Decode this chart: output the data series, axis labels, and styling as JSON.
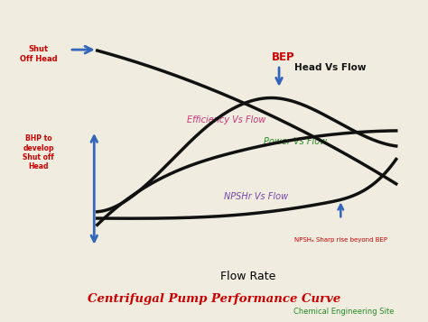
{
  "title": "Centrifugal Pump Performance Curve",
  "subtitle": "Chemical Engineering Site",
  "xlabel": "Flow Rate",
  "bg_color": "#f0ece0",
  "plot_bg": "#e8e4d8",
  "border_color": "#888888",
  "title_color": "#cc0000",
  "subtitle_color": "#228B22",
  "curve_color": "#111111",
  "label_head": "Head Vs Flow",
  "label_efficiency": "Efficiency Vs Flow",
  "label_power": "Power Vs Flow",
  "label_npshr": "NPSHr Vs Flow",
  "label_head_color": "#111111",
  "label_efficiency_color": "#cc3377",
  "label_power_color": "#228B22",
  "label_npshr_color": "#7744aa",
  "annotation_bep": "BEP",
  "annotation_bep_color": "#cc0000",
  "annotation_npsh": "NPSHₐ Sharp rise beyond BEP",
  "annotation_npsh_color": "#cc0000",
  "annotation_shutoff": "Shut\nOff Head",
  "annotation_shutoff_color": "#cc0000",
  "annotation_bhp": "BHP to\ndevelop\nShut off\nHead",
  "annotation_bhp_color": "#cc0000",
  "arrow_color": "#3366bb"
}
